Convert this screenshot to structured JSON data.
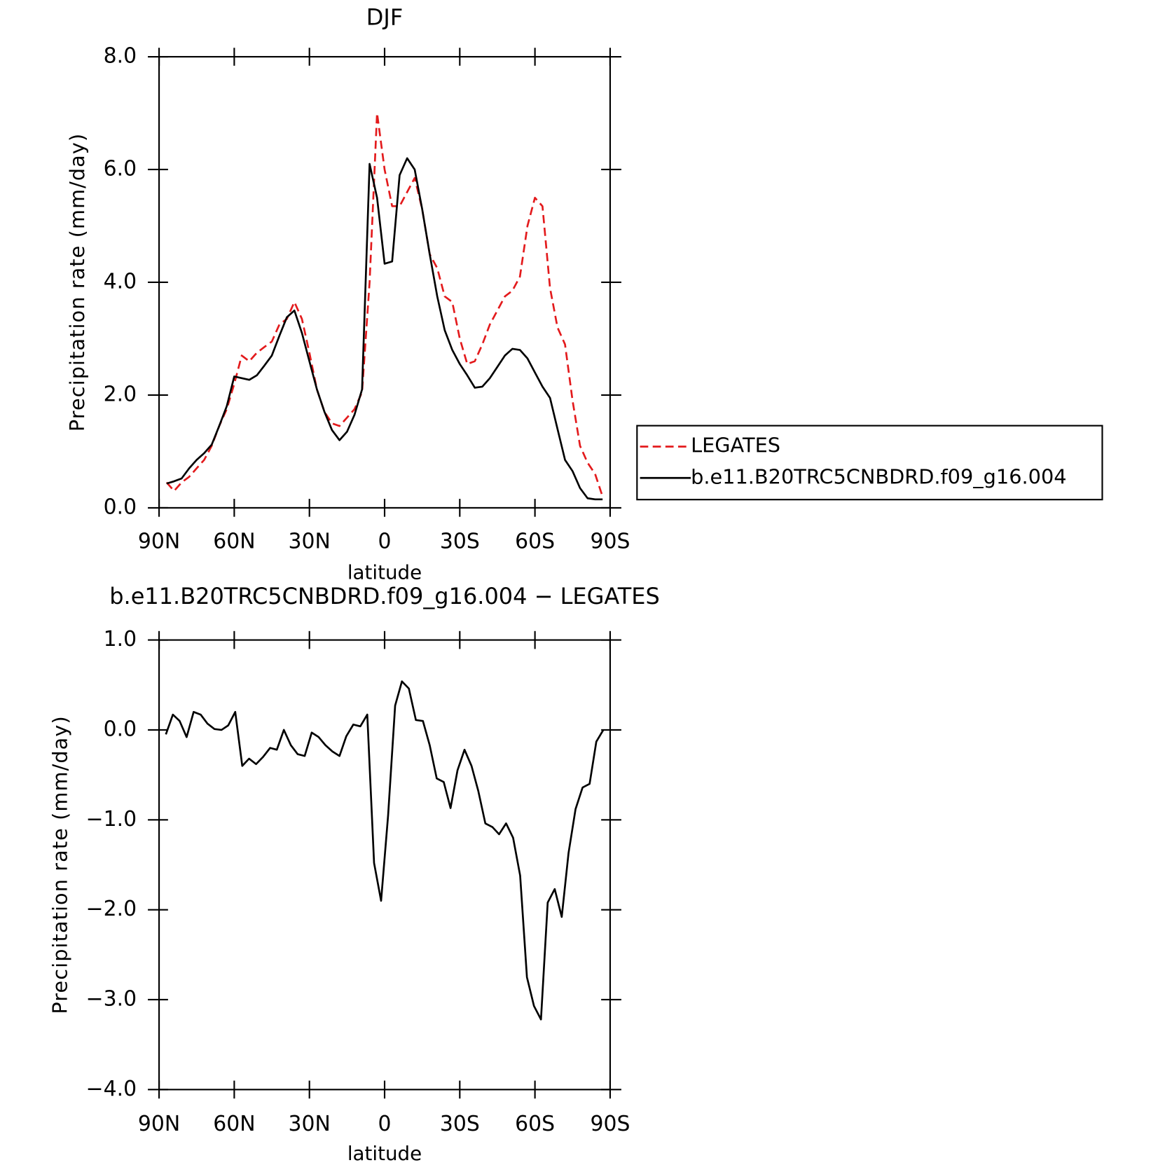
{
  "chart_data": [
    {
      "type": "line",
      "title": "DJF",
      "x_label": "latitude",
      "y_label": "Precipitation rate (mm/day)",
      "xlim": [
        90,
        -90
      ],
      "xticks": [
        {
          "value": 90,
          "label": "90N"
        },
        {
          "value": 60,
          "label": "60N"
        },
        {
          "value": 30,
          "label": "30N"
        },
        0,
        {
          "value": -30,
          "label": "30S"
        },
        {
          "value": -60,
          "label": "60S"
        },
        {
          "value": -90,
          "label": "90S"
        }
      ],
      "ylim": [
        0,
        8
      ],
      "yticks": [
        {
          "value": 0,
          "label": "0.0"
        },
        {
          "value": 2,
          "label": "2.0"
        },
        {
          "value": 4,
          "label": "4.0"
        },
        {
          "value": 6,
          "label": "6.0"
        },
        {
          "value": 8,
          "label": "8.0"
        }
      ],
      "legend": "right",
      "x": [
        87,
        84,
        81,
        78,
        75,
        72,
        69,
        66,
        63,
        60,
        57,
        54,
        51,
        48,
        45,
        42,
        39,
        36,
        33,
        30,
        27,
        24,
        21,
        18,
        15,
        12,
        9,
        6,
        3,
        0,
        -3,
        -6,
        -9,
        -12,
        -15,
        -18,
        -21,
        -24,
        -27,
        -30,
        -33,
        -36,
        -39,
        -42,
        -45,
        -48,
        -51,
        -54,
        -57,
        -60,
        -63,
        -66,
        -69,
        -72,
        -75,
        -78,
        -81,
        -84,
        -87
      ],
      "series": [
        {
          "name": "LEGATES",
          "color": "#e31a1c",
          "linestyle": "dashed",
          "values": [
            0.45,
            0.3,
            0.45,
            0.55,
            0.7,
            0.85,
            1.1,
            1.45,
            1.75,
            2.2,
            2.7,
            2.6,
            2.75,
            2.85,
            2.95,
            3.25,
            3.35,
            3.65,
            3.35,
            2.75,
            2.1,
            1.7,
            1.5,
            1.45,
            1.6,
            1.75,
            2.05,
            4.0,
            7.0,
            6.0,
            5.35,
            5.35,
            5.6,
            5.85,
            5.3,
            4.5,
            4.25,
            3.75,
            3.65,
            3.0,
            2.55,
            2.6,
            2.9,
            3.25,
            3.5,
            3.75,
            3.85,
            4.1,
            5.0,
            5.5,
            5.35,
            3.9,
            3.2,
            2.9,
            1.9,
            1.1,
            0.8,
            0.6,
            0.2
          ]
        },
        {
          "name": "b.e11.B20TRC5CNBDRD.f09_g16.004",
          "color": "#000000",
          "linestyle": "solid",
          "values": [
            0.43,
            0.47,
            0.52,
            0.7,
            0.85,
            0.97,
            1.12,
            1.45,
            1.8,
            2.33,
            2.3,
            2.27,
            2.35,
            2.52,
            2.7,
            3.05,
            3.38,
            3.5,
            3.1,
            2.6,
            2.1,
            1.7,
            1.38,
            1.2,
            1.35,
            1.65,
            2.1,
            6.1,
            5.5,
            4.33,
            4.37,
            5.9,
            6.2,
            6.0,
            5.3,
            4.5,
            3.75,
            3.15,
            2.8,
            2.55,
            2.35,
            2.13,
            2.15,
            2.3,
            2.5,
            2.7,
            2.82,
            2.8,
            2.65,
            2.4,
            2.15,
            1.95,
            1.4,
            0.85,
            0.65,
            0.35,
            0.17,
            0.15,
            0.15
          ]
        }
      ]
    },
    {
      "type": "line",
      "title": "b.e11.B20TRC5CNBDRD.f09_g16.004 − LEGATES",
      "x_label": "latitude",
      "y_label": "Precipitation rate (mm/day)",
      "xlim": [
        90,
        -90
      ],
      "xticks": [
        {
          "value": 90,
          "label": "90N"
        },
        {
          "value": 60,
          "label": "60N"
        },
        {
          "value": 30,
          "label": "30N"
        },
        0,
        {
          "value": -30,
          "label": "30S"
        },
        {
          "value": -60,
          "label": "60S"
        },
        {
          "value": -90,
          "label": "90S"
        }
      ],
      "ylim": [
        -4,
        1
      ],
      "yticks": [
        {
          "value": -4,
          "label": "−4.0"
        },
        {
          "value": -3,
          "label": "−3.0"
        },
        {
          "value": -2,
          "label": "−2.0"
        },
        {
          "value": -1,
          "label": "−1.0"
        },
        {
          "value": 0,
          "label": "0.0"
        },
        {
          "value": 1,
          "label": "1.0"
        }
      ],
      "x": [
        87.3,
        84.5,
        81.8,
        79.0,
        76.2,
        73.4,
        70.7,
        67.9,
        65.1,
        62.4,
        59.6,
        56.8,
        54.1,
        51.3,
        48.5,
        45.7,
        43.0,
        40.2,
        37.4,
        34.7,
        31.9,
        29.1,
        26.3,
        23.6,
        20.8,
        18.0,
        15.3,
        12.5,
        9.7,
        6.9,
        4.2,
        1.4,
        -1.4,
        -4.2,
        -6.9,
        -9.7,
        -12.5,
        -15.3,
        -18.0,
        -20.8,
        -23.6,
        -26.3,
        -29.1,
        -31.9,
        -34.7,
        -37.4,
        -40.2,
        -43.0,
        -45.7,
        -48.5,
        -51.3,
        -54.1,
        -56.8,
        -59.6,
        -62.4,
        -65.1,
        -67.9,
        -70.7,
        -73.4,
        -76.2,
        -79.0,
        -81.8,
        -84.5,
        -87.3
      ],
      "series": [
        {
          "color": "#000000",
          "linestyle": "solid",
          "values": [
            -0.05,
            0.17,
            0.1,
            -0.08,
            0.2,
            0.17,
            0.07,
            0.01,
            0,
            0.05,
            0.2,
            -0.4,
            -0.32,
            -0.38,
            -0.3,
            -0.2,
            -0.22,
            0,
            -0.17,
            -0.27,
            -0.29,
            -0.03,
            -0.08,
            -0.17,
            -0.24,
            -0.29,
            -0.07,
            0.06,
            0.04,
            0.17,
            -1.48,
            -1.9,
            -0.95,
            0.27,
            0.54,
            0.46,
            0.11,
            0.1,
            -0.17,
            -0.54,
            -0.58,
            -0.87,
            -0.45,
            -0.22,
            -0.4,
            -0.68,
            -1.04,
            -1.08,
            -1.16,
            -1.04,
            -1.2,
            -1.62,
            -2.75,
            -3.07,
            -3.22,
            -1.92,
            -1.77,
            -2.08,
            -1.37,
            -0.88,
            -0.64,
            -0.6,
            -0.13,
            0
          ]
        }
      ]
    }
  ]
}
